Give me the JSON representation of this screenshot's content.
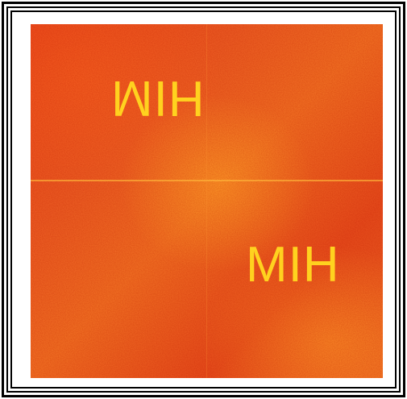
{
  "photo": {
    "text_top": "HIM",
    "text_bottom": "HIM"
  },
  "colors": {
    "frame": "#000000",
    "background": "#ffffff",
    "image_base": "#e8461b",
    "text": "#ffd21f"
  }
}
